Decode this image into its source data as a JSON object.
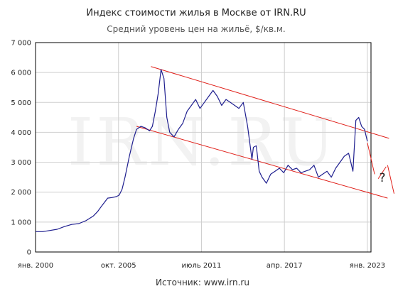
{
  "chart_data": {
    "type": "line",
    "title": "Индекс стоимости жилья в Москве от IRN.RU",
    "subtitle": "Средний уровень цен на жильё, $/кв.м.",
    "source": "Источник: www.irn.ru",
    "watermark": "IRN.RU",
    "annotation": "?",
    "ylim": [
      0,
      7000
    ],
    "yticks": [
      "0",
      "1 000",
      "2 000",
      "3 000",
      "4 000",
      "5 000",
      "6 000",
      "7 000"
    ],
    "xlim": [
      2000.0,
      2023.25
    ],
    "xtick_values": [
      2000.0,
      2005.75,
      2011.5,
      2017.25,
      2023.0
    ],
    "xticks": [
      "янв. 2000",
      "окт. 2005",
      "июль 2011",
      "апр. 2017",
      "янв. 2023"
    ],
    "grid": true,
    "colors": {
      "series": "#1f1f8f",
      "channel": "#e0201a",
      "grid": "#cfcfcf",
      "axis": "#000000"
    },
    "series": [
      {
        "x": [
          2000.0,
          2000.5,
          2001.0,
          2001.5,
          2002.0,
          2002.5,
          2003.0,
          2003.5,
          2004.0,
          2004.3,
          2004.6,
          2005.0,
          2005.3,
          2005.6,
          2005.8,
          2006.0,
          2006.2,
          2006.5,
          2006.8,
          2007.0,
          2007.3,
          2007.6,
          2007.9,
          2008.1,
          2008.3,
          2008.5,
          2008.7,
          2008.9,
          2009.1,
          2009.3,
          2009.6,
          2009.9,
          2010.2,
          2010.5,
          2010.8,
          2011.1,
          2011.4,
          2011.7,
          2012.0,
          2012.3,
          2012.6,
          2012.9,
          2013.2,
          2013.5,
          2013.8,
          2014.1,
          2014.4,
          2014.7,
          2015.0,
          2015.1,
          2015.3,
          2015.5,
          2015.7,
          2016.0,
          2016.3,
          2016.6,
          2016.9,
          2017.2,
          2017.5,
          2017.8,
          2018.1,
          2018.4,
          2018.7,
          2019.0,
          2019.3,
          2019.6,
          2019.9,
          2020.2,
          2020.5,
          2020.8,
          2021.1,
          2021.4,
          2021.7,
          2021.8,
          2022.0,
          2022.2,
          2022.4,
          2022.6,
          2022.8,
          2023.0
        ],
        "values": [
          680,
          680,
          720,
          760,
          850,
          920,
          950,
          1050,
          1200,
          1350,
          1550,
          1800,
          1820,
          1850,
          1900,
          2100,
          2500,
          3200,
          3800,
          4100,
          4200,
          4150,
          4050,
          4200,
          4700,
          5300,
          6100,
          5800,
          4500,
          4000,
          3850,
          4100,
          4300,
          4700,
          4900,
          5100,
          4800,
          5000,
          5200,
          5400,
          5200,
          4900,
          5100,
          5000,
          4900,
          4800,
          5000,
          4200,
          3100,
          3500,
          3550,
          2700,
          2500,
          2300,
          2600,
          2700,
          2800,
          2650,
          2900,
          2750,
          2800,
          2650,
          2700,
          2750,
          2900,
          2500,
          2600,
          2700,
          2500,
          2800,
          3000,
          3200,
          3300,
          3100,
          2700,
          4400,
          4500,
          4200,
          4100,
          3700
        ]
      }
    ],
    "channel_lines": [
      {
        "x": [
          2008.0,
          2024.5
        ],
        "values": [
          6200,
          3800
        ]
      },
      {
        "x": [
          2007.0,
          2024.4
        ],
        "values": [
          4200,
          1800
        ]
      }
    ],
    "projection_segments": [
      {
        "x": [
          2023.0,
          2023.5
        ],
        "values": [
          3650,
          2600
        ]
      },
      {
        "x": [
          2023.75,
          2024.3
        ],
        "values": [
          2450,
          2850
        ]
      },
      {
        "x": [
          2024.4,
          2024.85
        ],
        "values": [
          2900,
          1950
        ]
      }
    ]
  }
}
